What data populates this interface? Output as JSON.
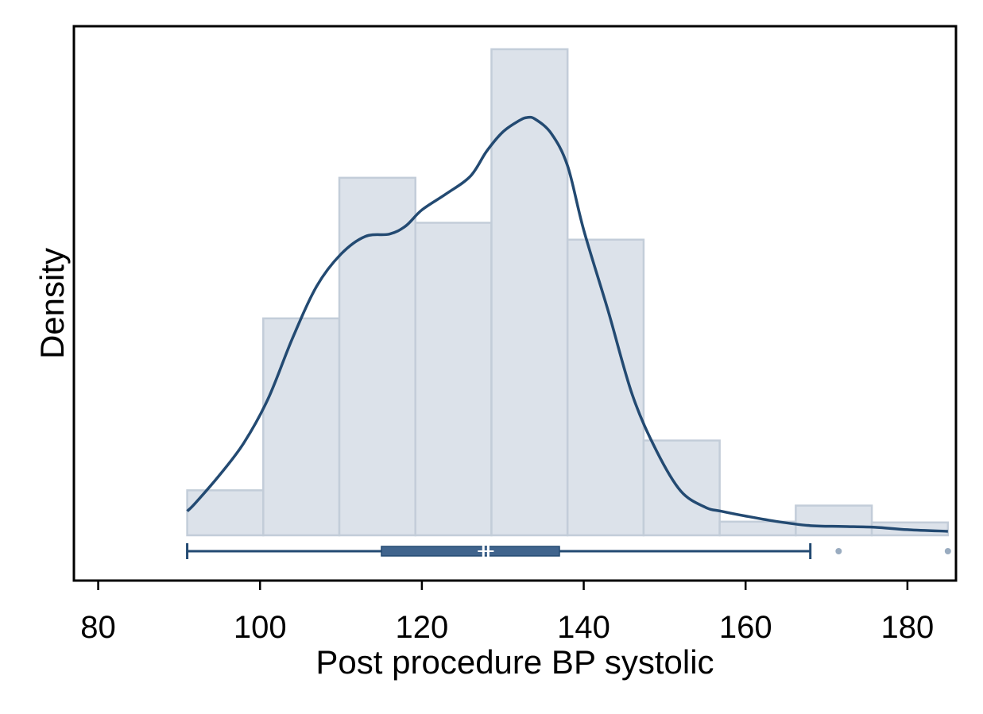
{
  "chart_data": {
    "type": "bar",
    "title": "",
    "xlabel": "Post procedure BP systolic",
    "ylabel": "Density",
    "xlim": [
      77,
      186
    ],
    "xticks": [
      80,
      100,
      120,
      140,
      160,
      180
    ],
    "y_tick_labels_shown": false,
    "grid": false,
    "legend": "none",
    "colors": {
      "bar_fill": "#dce2ea",
      "bar_stroke": "#c3cdd9",
      "curve": "#234a72",
      "box": "#40648d",
      "outlier": "#9aacc0"
    },
    "histogram": {
      "bin_edges": [
        91,
        100.4,
        109.8,
        119.2,
        128.6,
        138,
        147.4,
        156.8,
        166.2,
        175.6,
        185
      ],
      "density": [
        0.0056,
        0.027,
        0.0445,
        0.0389,
        0.0605,
        0.0368,
        0.0118,
        0.0017,
        0.0037,
        0.0016
      ]
    },
    "kde": {
      "x": [
        91,
        92,
        95,
        98,
        101,
        104,
        107,
        110,
        113,
        116,
        118,
        120,
        123,
        126,
        128,
        130,
        132,
        133,
        134,
        136,
        138,
        140,
        143,
        146,
        149,
        152,
        155,
        157,
        160,
        164,
        168,
        172,
        176,
        180,
        185
      ],
      "y": [
        0.003,
        0.004,
        0.0075,
        0.0115,
        0.017,
        0.0245,
        0.031,
        0.035,
        0.0372,
        0.0375,
        0.0385,
        0.0405,
        0.0425,
        0.0447,
        0.0478,
        0.0502,
        0.0516,
        0.052,
        0.0518,
        0.05,
        0.046,
        0.038,
        0.028,
        0.0175,
        0.0105,
        0.0055,
        0.0035,
        0.003,
        0.0024,
        0.0017,
        0.0012,
        0.0011,
        0.001,
        0.0007,
        0.0005
      ]
    },
    "boxplot": {
      "whisker_low": 91,
      "q1": 115,
      "median": 128.2,
      "mean": 127.6,
      "q3": 137,
      "whisker_high": 168,
      "outliers": [
        171.5,
        185
      ]
    }
  }
}
